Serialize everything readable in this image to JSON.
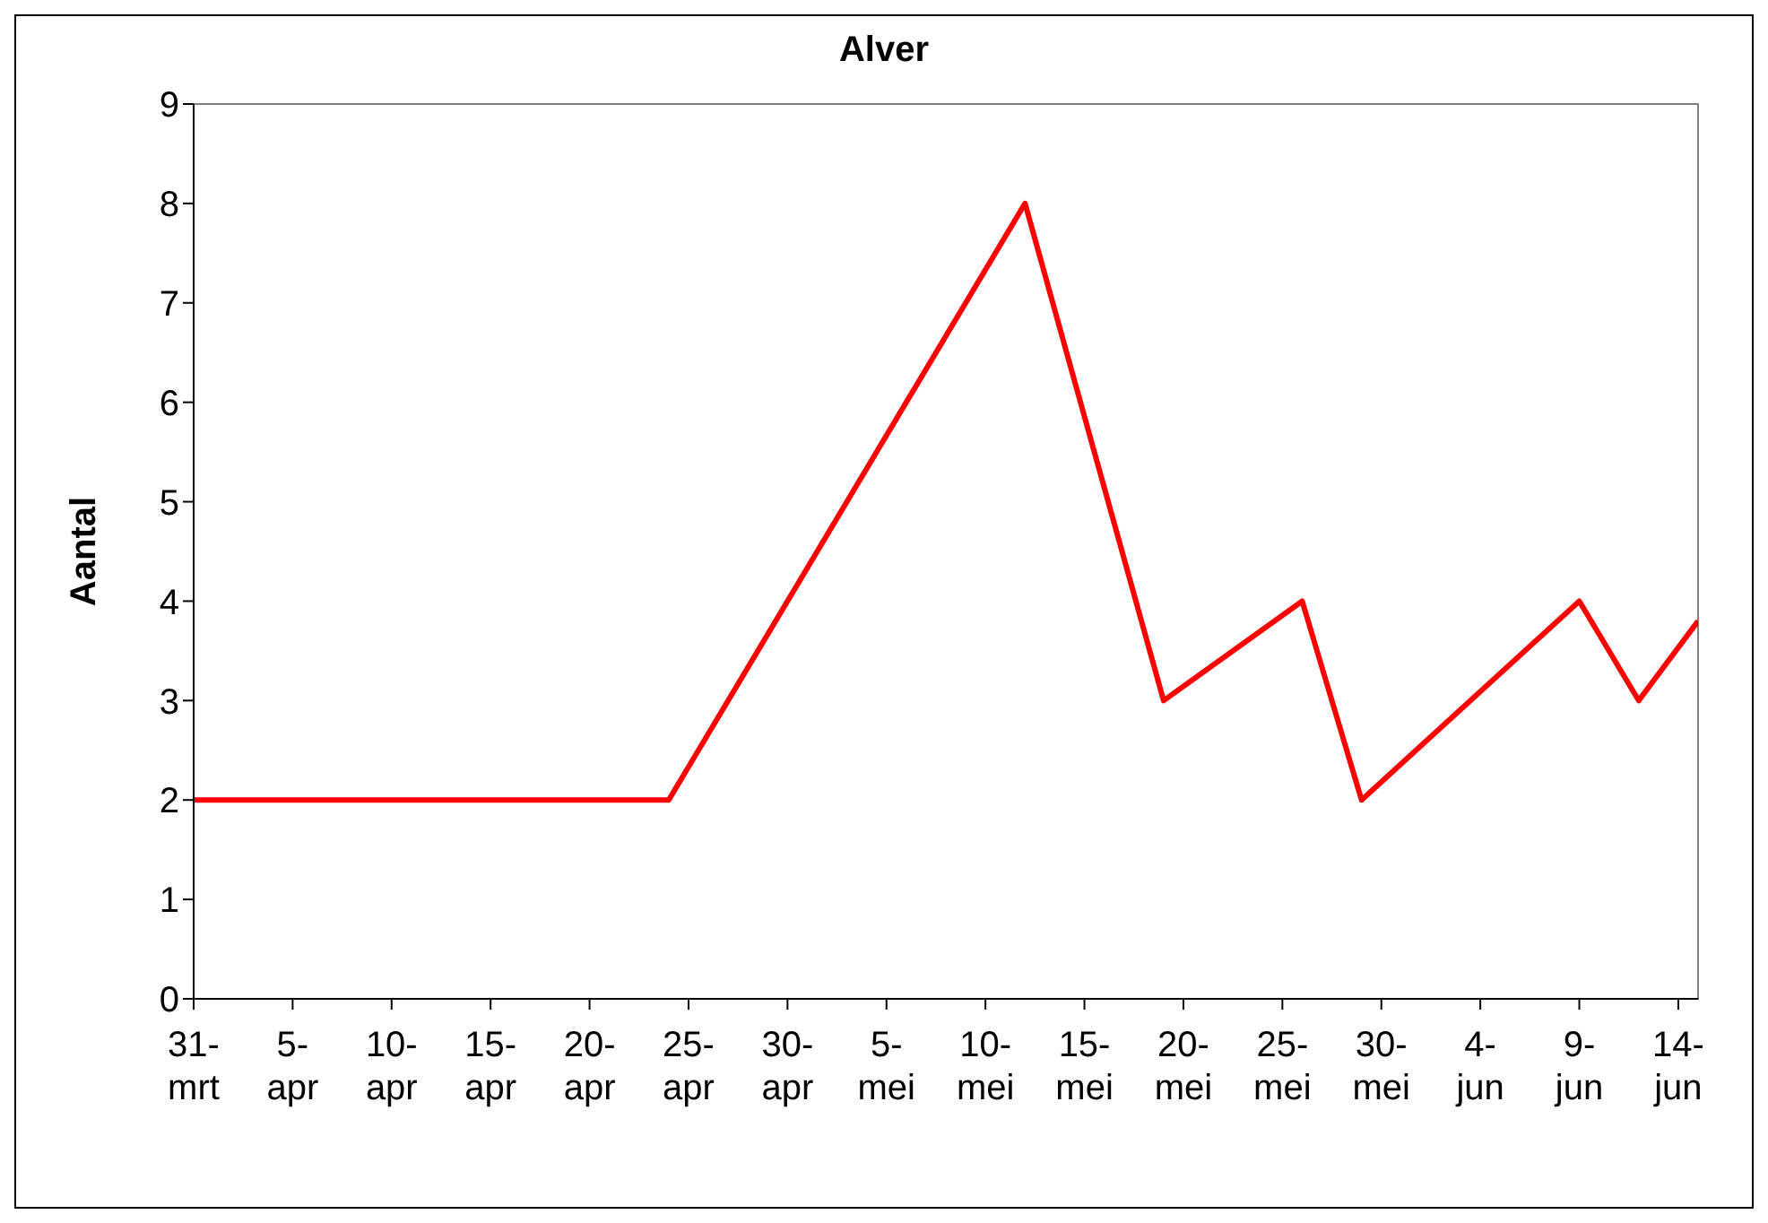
{
  "chart_data": {
    "type": "line",
    "title": "Alver",
    "ylabel": "Aantal",
    "x": [
      "--03-31",
      "--04-24",
      "--05-12",
      "--05-19",
      "--05-26",
      "--05-29",
      "--06-09",
      "--06-12",
      "--06-15"
    ],
    "series": [
      {
        "color": "#ff0000",
        "values": [
          2,
          2,
          8,
          3,
          4,
          2,
          4,
          3,
          3.8
        ]
      }
    ],
    "xlim": [
      "--03-31",
      "--06-15"
    ],
    "xticks": [
      {
        "value": "--03-31",
        "label": "31-mrt"
      },
      {
        "value": "--04-05",
        "label": "5-apr"
      },
      {
        "value": "--04-10",
        "label": "10-apr"
      },
      {
        "value": "--04-15",
        "label": "15-apr"
      },
      {
        "value": "--04-20",
        "label": "20-apr"
      },
      {
        "value": "--04-25",
        "label": "25-apr"
      },
      {
        "value": "--04-30",
        "label": "30-apr"
      },
      {
        "value": "--05-05",
        "label": "5-mei"
      },
      {
        "value": "--05-10",
        "label": "10-mei"
      },
      {
        "value": "--05-15",
        "label": "15-mei"
      },
      {
        "value": "--05-20",
        "label": "20-mei"
      },
      {
        "value": "--05-25",
        "label": "25-mei"
      },
      {
        "value": "--05-30",
        "label": "30-mei"
      },
      {
        "value": "--06-04",
        "label": "4-jun"
      },
      {
        "value": "--06-09",
        "label": "9-jun"
      },
      {
        "value": "--06-14",
        "label": "14-jun"
      }
    ],
    "ylim": [
      0,
      9
    ],
    "yticks": [
      0,
      1,
      2,
      3,
      4,
      5,
      6,
      7,
      8,
      9
    ],
    "grid": false,
    "legend": false,
    "marker": "none",
    "line_style": "solid"
  }
}
